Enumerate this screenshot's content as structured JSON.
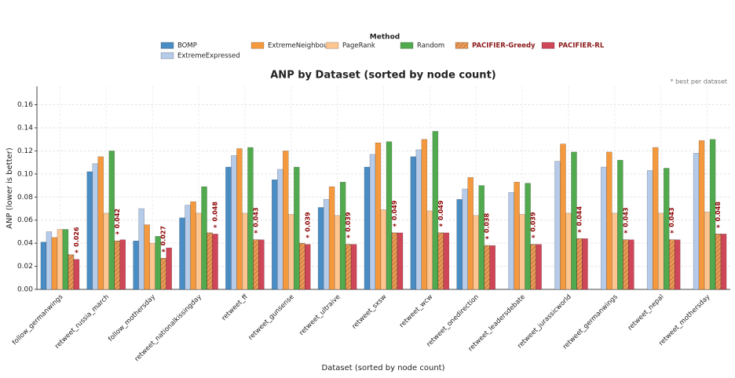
{
  "chart_data": {
    "type": "bar",
    "title": "ANP by Dataset (sorted by node count)",
    "xlabel": "Dataset (sorted by node count)",
    "ylabel": "ANP (lower is better)",
    "legend_title": "Method",
    "note": "* best per dataset",
    "best_marker": "*",
    "categories": [
      "follow_germanwings",
      "retweet_russia_march",
      "follow_mothersday",
      "retweet_nationalkissingday",
      "retweet_ff",
      "retweet_gunsense",
      "retweet_ultraive",
      "retweet_sxsw",
      "retweet_wcw",
      "retweet_onedirection",
      "retweet_leadersdebate",
      "retweet_jurassicworld",
      "retweet_germanwings",
      "retweet_nepal",
      "retweet_mothersday"
    ],
    "series": [
      {
        "name": "BOMP",
        "color": "#4a8cc4",
        "values": [
          0.041,
          0.102,
          0.042,
          0.062,
          0.106,
          0.095,
          0.071,
          0.106,
          0.115,
          0.078,
          null,
          null,
          null,
          null,
          null
        ]
      },
      {
        "name": "ExtremeExpressed",
        "color": "#b5cbe9",
        "values": [
          0.05,
          0.109,
          0.07,
          0.073,
          0.116,
          0.104,
          0.078,
          0.117,
          0.121,
          0.087,
          0.084,
          0.111,
          0.106,
          0.103,
          0.118
        ]
      },
      {
        "name": "ExtremeNeighbours",
        "color": "#f5993f",
        "values": [
          0.045,
          0.115,
          0.056,
          0.076,
          0.122,
          0.12,
          0.089,
          0.127,
          0.13,
          0.097,
          0.093,
          0.126,
          0.119,
          0.123,
          0.129
        ]
      },
      {
        "name": "PageRank",
        "color": "#fdc590",
        "values": [
          0.052,
          0.066,
          0.04,
          0.066,
          0.066,
          0.065,
          0.064,
          0.069,
          0.068,
          0.064,
          0.065,
          0.066,
          0.066,
          0.066,
          0.067
        ]
      },
      {
        "name": "Random",
        "color": "#52aa4e",
        "values": [
          0.052,
          0.12,
          0.046,
          0.089,
          0.123,
          0.106,
          0.093,
          0.128,
          0.137,
          0.09,
          0.092,
          0.119,
          0.112,
          0.105,
          0.13
        ]
      },
      {
        "name": "PACIFIER-Greedy",
        "color": "#e99a58",
        "hatch": true,
        "values": [
          0.03,
          0.042,
          0.027,
          0.049,
          0.043,
          0.04,
          0.039,
          0.049,
          0.049,
          0.038,
          0.039,
          0.044,
          0.043,
          0.043,
          0.048
        ]
      },
      {
        "name": "PACIFIER-RL",
        "color": "#cf4658",
        "values": [
          0.026,
          0.043,
          0.036,
          0.048,
          0.043,
          0.039,
          0.039,
          0.049,
          0.049,
          0.038,
          0.039,
          0.044,
          0.043,
          0.043,
          0.048
        ]
      }
    ],
    "best_labels": [
      "0.026",
      "0.042",
      "0.027",
      "0.048",
      "0.043",
      "0.039",
      "0.039",
      "0.049",
      "0.049",
      "0.038",
      "0.039",
      "0.044",
      "0.043",
      "0.043",
      "0.048"
    ],
    "ylim": [
      0,
      0.176
    ],
    "yticks": [
      {
        "value": 0,
        "label": "0.00"
      },
      {
        "value": 0.02,
        "label": "0.02"
      },
      {
        "value": 0.04,
        "label": "0.04"
      },
      {
        "value": 0.06,
        "label": "0.06"
      },
      {
        "value": 0.08,
        "label": "0.08"
      },
      {
        "value": 0.1,
        "label": "0.10"
      },
      {
        "value": 0.12,
        "label": "0.12"
      },
      {
        "value": 0.14,
        "label": "0.14"
      },
      {
        "value": 0.16,
        "label": "0.16"
      }
    ],
    "grid": true
  }
}
